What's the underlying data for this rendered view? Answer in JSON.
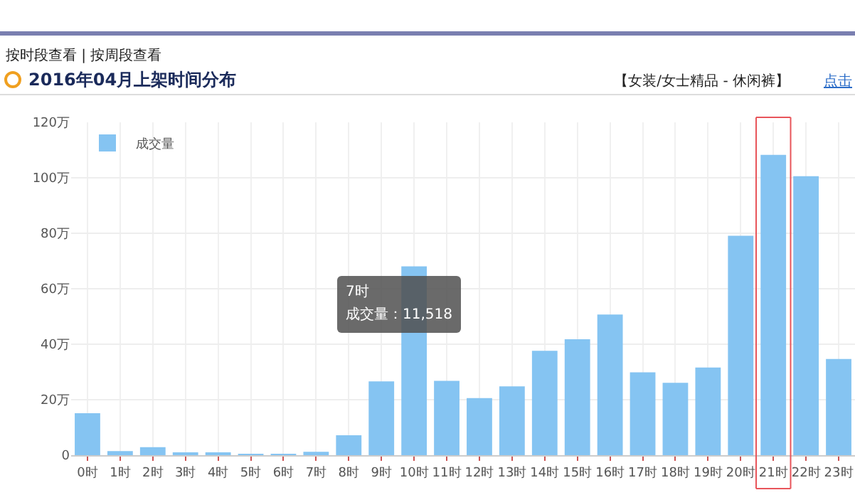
{
  "chart_data": {
    "type": "bar",
    "title": "2016年04月上架时间分布",
    "subtitle": "【女装/女士精品 - 休闲裤】",
    "annotations": [
      "按时段查看 | 按周段查看",
      "点击",
      "7时",
      "成交量：11,518"
    ],
    "categories": [
      "0时",
      "1时",
      "2时",
      "3时",
      "4时",
      "5时",
      "6时",
      "7时",
      "8时",
      "9时",
      "10时",
      "11时",
      "12时",
      "13时",
      "14时",
      "15时",
      "16时",
      "17时",
      "18时",
      "19时",
      "20时",
      "21时",
      "22时",
      "23时"
    ],
    "series": [
      {
        "name": "成交量",
        "color": "#85c4f2",
        "values": [
          15.1,
          1.5,
          2.9,
          0.9,
          0.9,
          0.5,
          0.3,
          1.2,
          7.2,
          26.6,
          68.1,
          26.8,
          20.6,
          24.8,
          37.6,
          41.8,
          50.7,
          29.9,
          26.1,
          31.6,
          79.1,
          108.3,
          100.6,
          34.7
        ]
      }
    ],
    "ylim": [
      0,
      120
    ],
    "yticks": [
      0,
      {
        "value": 20,
        "label": "20万"
      },
      {
        "value": 40,
        "label": "40万"
      },
      {
        "value": 60,
        "label": "60万"
      },
      {
        "value": 80,
        "label": "80万"
      },
      {
        "value": 100,
        "label": "100万"
      },
      {
        "value": 120,
        "label": "120万"
      }
    ],
    "grid": true,
    "legend": "top left"
  }
}
